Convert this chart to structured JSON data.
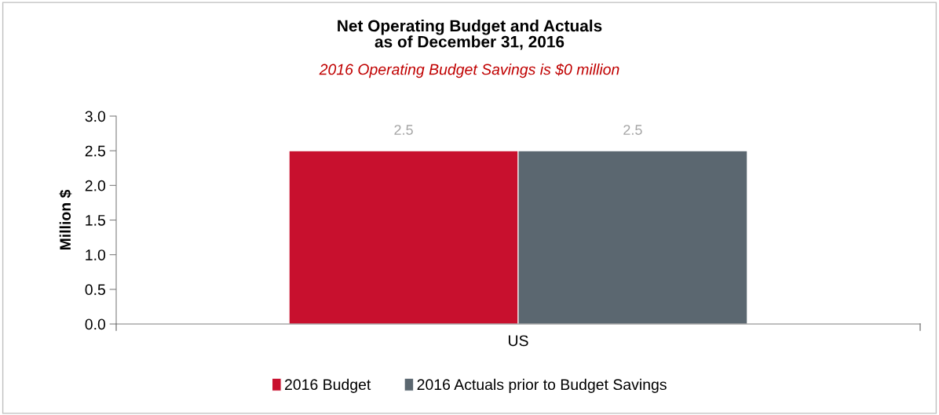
{
  "chart_data": {
    "type": "bar",
    "title": "Net Operating Budget and Actuals\nas of December 31, 2016",
    "subtitle": "2016 Operating Budget Savings is $0 million",
    "ylabel": "Million $",
    "categories": [
      "US"
    ],
    "series": [
      {
        "name": "2016 Budget",
        "color": "#c8102e",
        "values": [
          2.5
        ]
      },
      {
        "name": "2016 Actuals prior to Budget Savings",
        "color": "#5b6770",
        "values": [
          2.5
        ]
      }
    ],
    "ylim": [
      0,
      3.0
    ],
    "yticks": [
      {
        "value": 0,
        "label": "0.0"
      },
      {
        "value": 0.5,
        "label": "0.5"
      },
      {
        "value": 1.0,
        "label": "1.0"
      },
      {
        "value": 1.5,
        "label": "1.5"
      },
      {
        "value": 2.0,
        "label": "2.0"
      },
      {
        "value": 2.5,
        "label": "2.5"
      },
      {
        "value": 3.0,
        "label": "3.0"
      }
    ],
    "data_labels": true,
    "grid": false,
    "legend": "bottom"
  }
}
